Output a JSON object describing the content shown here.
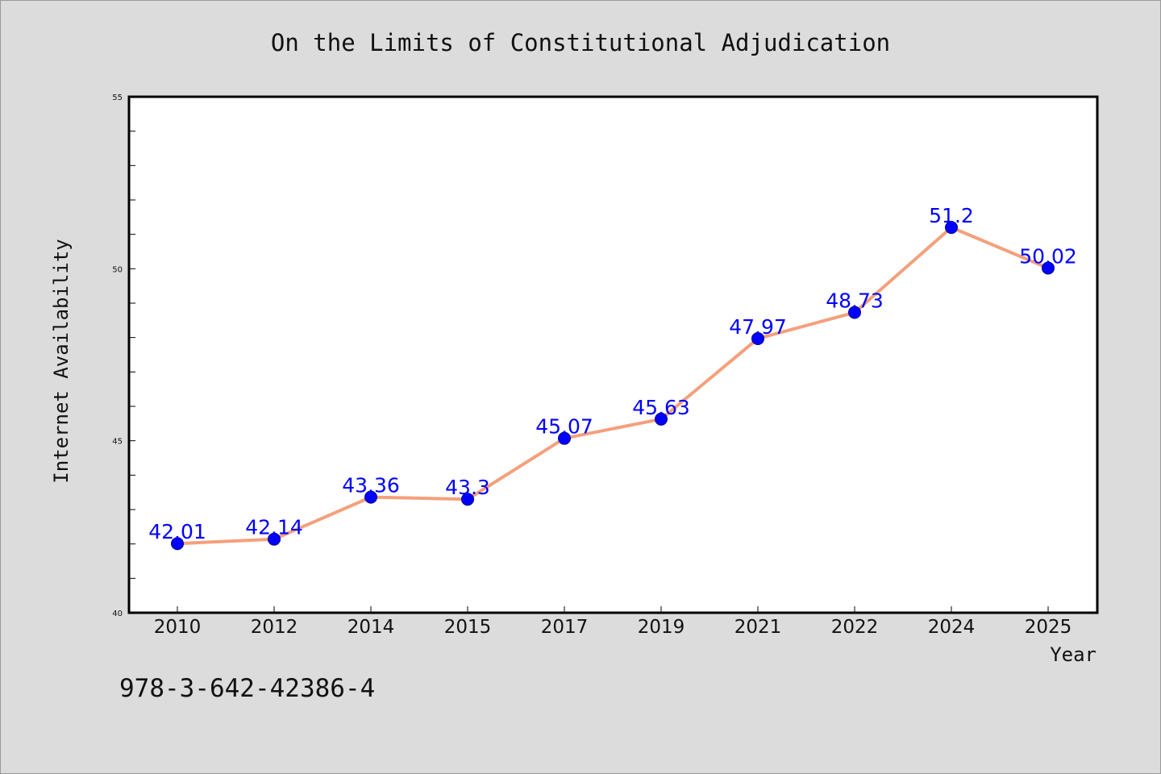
{
  "chart_data": {
    "type": "line",
    "title": "On the Limits of Constitutional Adjudication",
    "xlabel": "Year",
    "ylabel": "Internet Availability",
    "categories": [
      "2010",
      "2012",
      "2014",
      "2015",
      "2017",
      "2019",
      "2021",
      "2022",
      "2024",
      "2025"
    ],
    "series": [
      {
        "values": [
          42.01,
          42.14,
          43.36,
          43.3,
          45.07,
          45.63,
          47.97,
          48.73,
          51.2,
          50.02
        ],
        "data_labels": [
          "42.01",
          "42.14",
          "43.36",
          "43.3",
          "45.07",
          "45.63",
          "47.97",
          "48.73",
          "51.2",
          "50.02"
        ],
        "line_color": "#f4a07c",
        "marker_color": "#0000ff"
      }
    ],
    "ylim": [
      40,
      55
    ],
    "yticks": [
      "40",
      "45",
      "50",
      "55"
    ],
    "grid": false,
    "legend": "none"
  },
  "footer": {
    "isbn": "978-3-642-42386-4"
  }
}
